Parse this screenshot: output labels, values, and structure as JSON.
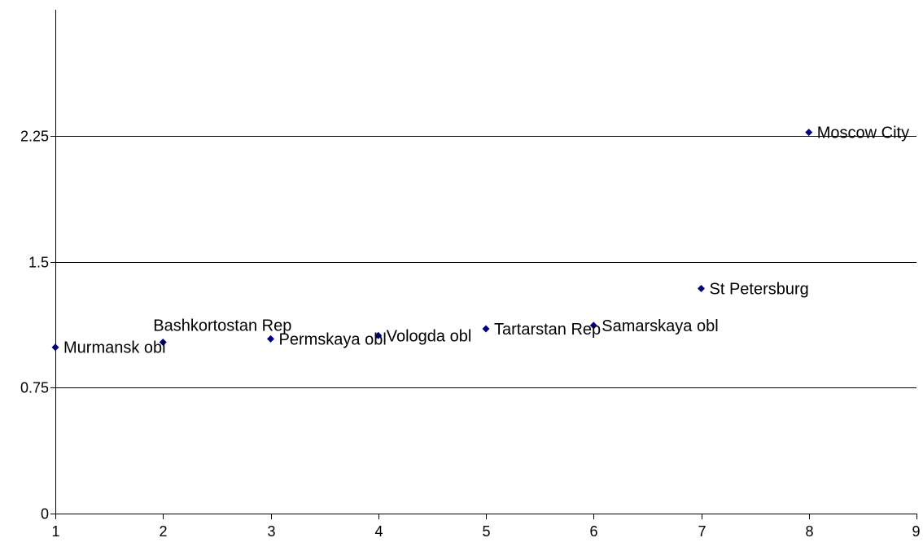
{
  "chart_data": {
    "type": "scatter",
    "title": "",
    "xlabel": "",
    "ylabel": "",
    "xlim": [
      1,
      9
    ],
    "ylim": [
      0,
      3.0
    ],
    "x_ticks": [
      1,
      2,
      3,
      4,
      5,
      6,
      7,
      8,
      9
    ],
    "y_ticks": [
      0,
      0.75,
      1.5,
      2.25
    ],
    "x_tick_labels": [
      "1",
      "2",
      "3",
      "4",
      "5",
      "6",
      "7",
      "8",
      "9"
    ],
    "y_tick_labels": [
      "0",
      "0.75",
      "1.5",
      "2.25"
    ],
    "grid": "horizontal major lines",
    "legend": "none",
    "marker": "diamond",
    "marker_color": "#000080",
    "points": [
      {
        "x": 1,
        "y": 0.99,
        "label": "Murmansk obl"
      },
      {
        "x": 2,
        "y": 1.02,
        "label": "Bashkortostan Rep"
      },
      {
        "x": 3,
        "y": 1.04,
        "label": "Permskaya obl"
      },
      {
        "x": 4,
        "y": 1.06,
        "label": "Vologda obl"
      },
      {
        "x": 5,
        "y": 1.1,
        "label": "Tartarstan Rep"
      },
      {
        "x": 6,
        "y": 1.12,
        "label": "Samarskaya obl"
      },
      {
        "x": 7,
        "y": 1.34,
        "label": "St Petersburg"
      },
      {
        "x": 8,
        "y": 2.27,
        "label": "Moscow City"
      }
    ]
  }
}
